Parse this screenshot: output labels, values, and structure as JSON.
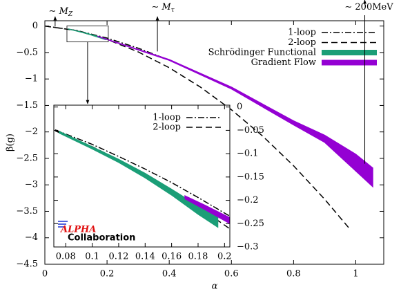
{
  "chart_data": [
    {
      "type": "line",
      "xlabel": "α",
      "ylabel": "β(g)",
      "xlim": [
        0,
        1.09
      ],
      "ylim": [
        -4.5,
        0.1
      ],
      "xticks": [
        0,
        0.2,
        0.4,
        0.6,
        0.8,
        1
      ],
      "yticks": [
        0,
        {
          "value": -0.5,
          "label": "−0.5"
        },
        {
          "value": -1,
          "label": "−1"
        },
        {
          "value": -1.5,
          "label": "−1.5"
        },
        {
          "value": -2,
          "label": "−2"
        },
        {
          "value": -2.5,
          "label": "−2.5"
        },
        {
          "value": -3,
          "label": "−3"
        },
        {
          "value": -3.5,
          "label": "−3.5"
        },
        {
          "value": -4,
          "label": "−4"
        },
        {
          "value": -4.5,
          "label": "−4.5"
        }
      ],
      "legend": "upper right",
      "series": [
        {
          "name": "1-loop",
          "color": "#000000",
          "dash": "dashdot",
          "x": [
            0,
            0.1,
            0.2,
            0.3,
            0.4,
            0.5,
            0.6,
            0.7,
            0.8,
            0.9,
            1.0,
            1.03
          ],
          "values": [
            0,
            -0.08,
            -0.227,
            -0.417,
            -0.642,
            -0.898,
            -1.18,
            -1.487,
            -1.817,
            -2.168,
            -2.539,
            -2.654
          ]
        },
        {
          "name": "2-loop",
          "color": "#000000",
          "dash": "dash",
          "x": [
            0,
            0.1,
            0.2,
            0.3,
            0.4,
            0.5,
            0.6,
            0.7,
            0.8,
            0.9,
            0.98
          ],
          "values": [
            0,
            -0.085,
            -0.253,
            -0.488,
            -0.787,
            -1.152,
            -1.581,
            -2.076,
            -2.639,
            -3.272,
            -3.829
          ]
        },
        {
          "name": "Schrödinger Functional",
          "color": "#1b9e77",
          "band": true,
          "x": [
            0.075,
            0.135,
            0.195
          ],
          "upper": [
            -0.052,
            -0.135,
            -0.236
          ],
          "values": [
            -0.056,
            -0.145,
            -0.258
          ]
        },
        {
          "name": "Gradient Flow",
          "color": "#9400d3",
          "band": true,
          "x": [
            0.17,
            0.4,
            0.6,
            0.8,
            0.9,
            1.0,
            1.055
          ],
          "upper": [
            -0.19,
            -0.63,
            -1.15,
            -1.79,
            -2.06,
            -2.42,
            -2.68
          ],
          "values": [
            -0.197,
            -0.65,
            -1.19,
            -1.87,
            -2.2,
            -2.74,
            -3.04
          ]
        }
      ],
      "annotations": [
        {
          "text": "∼ M",
          "sub": "Z",
          "x": 0.033,
          "y": -0.01
        },
        {
          "text": "∼ M",
          "sub": "τ",
          "x": 0.362,
          "y": -0.48
        },
        {
          "text": "∼ 200MeV",
          "x": 1.029,
          "y": -2.6
        }
      ]
    },
    {
      "type": "line",
      "xlim": [
        0.071,
        0.204
      ],
      "ylim": [
        -0.3,
        0.004
      ],
      "xticks": [
        0.08,
        0.1,
        0.12,
        0.14,
        0.16,
        0.18,
        0.2
      ],
      "yticks": [
        0,
        {
          "value": -0.05,
          "label": "−0.05"
        },
        {
          "value": -0.1,
          "label": "−0.1"
        },
        {
          "value": -0.15,
          "label": "−0.15"
        },
        {
          "value": -0.2,
          "label": "−0.2"
        },
        {
          "value": -0.25,
          "label": "−0.25"
        },
        {
          "value": -0.3,
          "label": "−0.3"
        }
      ],
      "legend": "upper right",
      "series": [
        {
          "name": "1-loop",
          "color": "#000000",
          "dash": "dashdot",
          "x": [
            0.072,
            0.1,
            0.12,
            0.14,
            0.16,
            0.18,
            0.204
          ],
          "values": [
            -0.049,
            -0.08,
            -0.106,
            -0.133,
            -0.162,
            -0.194,
            -0.234
          ]
        },
        {
          "name": "2-loop",
          "color": "#000000",
          "dash": "dash",
          "x": [
            0.072,
            0.1,
            0.12,
            0.14,
            0.16,
            0.18,
            0.204
          ],
          "values": [
            -0.051,
            -0.085,
            -0.113,
            -0.144,
            -0.177,
            -0.214,
            -0.261
          ]
        },
        {
          "color": "#1b9e77",
          "band": true,
          "x": [
            0.075,
            0.1,
            0.12,
            0.14,
            0.16,
            0.18,
            0.195
          ],
          "upper": [
            -0.052,
            -0.085,
            -0.112,
            -0.142,
            -0.176,
            -0.212,
            -0.236
          ],
          "values": [
            -0.056,
            -0.09,
            -0.119,
            -0.152,
            -0.189,
            -0.23,
            -0.258
          ]
        },
        {
          "color": "#9400d3",
          "band": true,
          "x": [
            0.17,
            0.185,
            0.204
          ],
          "upper": [
            -0.19,
            -0.21,
            -0.237
          ],
          "values": [
            -0.197,
            -0.22,
            -0.25
          ]
        }
      ],
      "logo": {
        "name": "ALPHA",
        "sub": "Collaboration"
      }
    }
  ]
}
